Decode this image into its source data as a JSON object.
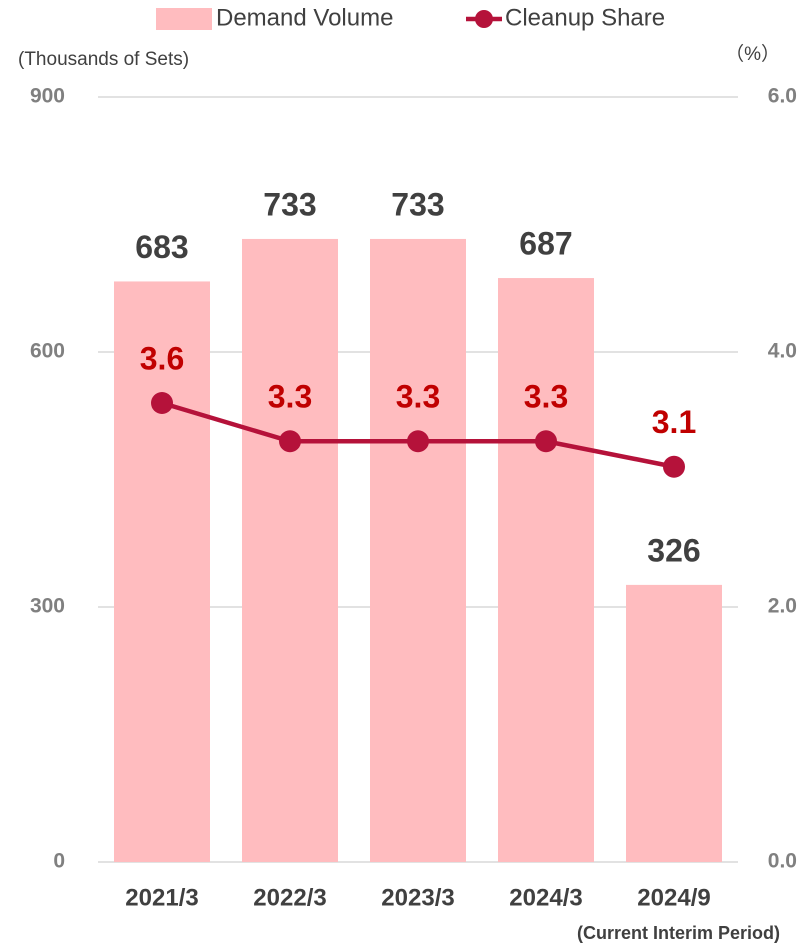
{
  "chart_data": {
    "type": "bar",
    "categories": [
      "2021/3",
      "2022/3",
      "2023/3",
      "2024/3",
      "2024/9"
    ],
    "note": "(Current Interim Period)",
    "y_label": "(Thousands of Sets)",
    "y2_label": "（%）",
    "series": [
      {
        "name": "Demand Volume",
        "type": "bar",
        "color": "#ffbcbf",
        "label_color": "#404040",
        "values": [
          683,
          733,
          733,
          687,
          326
        ]
      },
      {
        "name": "Cleanup Share",
        "type": "line",
        "axis": "y2",
        "color": "#b5123a",
        "label_color": "#c00000",
        "values": [
          3.6,
          3.3,
          3.3,
          3.3,
          3.1
        ]
      }
    ],
    "ylim": [
      0,
      900
    ],
    "yticks": [
      0,
      300,
      600,
      900
    ],
    "y2lim": [
      0,
      6
    ],
    "y2ticks": [
      {
        "value": 0,
        "label": "0.0"
      },
      {
        "value": 2,
        "label": "2.0"
      },
      {
        "value": 4,
        "label": "4.0"
      },
      {
        "value": 6,
        "label": "6.0"
      }
    ],
    "grid": true
  }
}
